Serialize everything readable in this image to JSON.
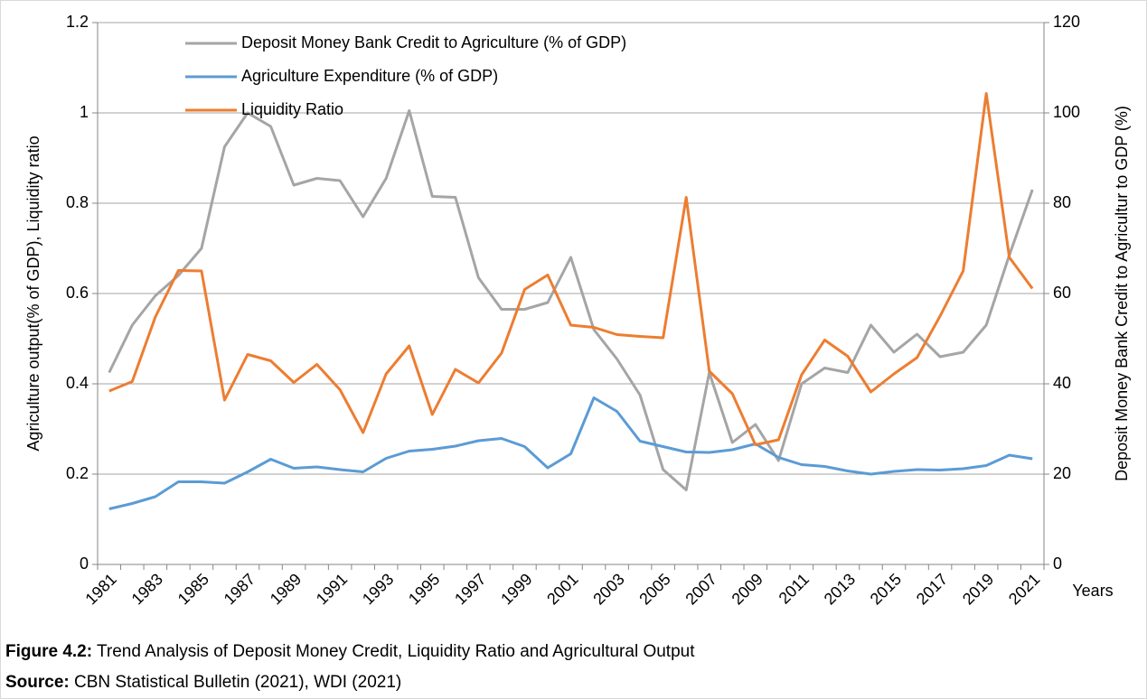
{
  "chart_data": {
    "type": "line",
    "y_label": "Agriculture output(% of GDP), Liquidity ratio",
    "y2_label": "Deposit Money Bank Credit to Agricultur to GDP (%)",
    "x_label": "Years",
    "categories": [
      "1981",
      null,
      "1983",
      null,
      "1985",
      null,
      "1987",
      null,
      "1989",
      null,
      "1991",
      null,
      "1993",
      null,
      "1995",
      null,
      "1997",
      null,
      "1999",
      null,
      "2001",
      null,
      "2003",
      null,
      "2005",
      null,
      "2007",
      null,
      "2009",
      null,
      "2011",
      null,
      "2013",
      null,
      "2015",
      null,
      "2017",
      null,
      "2019",
      null,
      "2021"
    ],
    "series": [
      {
        "name": "Deposit Money Bank Credit to Agriculture (% of GDP)",
        "color": "#a5a5a5",
        "axis": "y2",
        "values": [
          42.5,
          53,
          59.5,
          64,
          70,
          92.5,
          100,
          97,
          84,
          85.5,
          85,
          77,
          85.5,
          100.5,
          81.5,
          81.3,
          63.5,
          56.5,
          56.5,
          58,
          68,
          52,
          45.5,
          37.5,
          21,
          16.5,
          42.5,
          27,
          31,
          23,
          40,
          43.5,
          42.5,
          53,
          47,
          51,
          46,
          47,
          53,
          68.5,
          83
        ]
      },
      {
        "name": "Agriculture Expenditure (% of GDP)",
        "color": "#5b9bd5",
        "values": [
          0.123,
          0.135,
          0.15,
          0.183,
          0.183,
          0.18,
          0.205,
          0.233,
          0.213,
          0.216,
          0.21,
          0.205,
          0.235,
          0.251,
          0.255,
          0.262,
          0.274,
          0.279,
          0.261,
          0.214,
          0.245,
          0.369,
          0.339,
          0.273,
          0.261,
          0.249,
          0.248,
          0.254,
          0.267,
          0.237,
          0.221,
          0.217,
          0.207,
          0.2,
          0.206,
          0.21,
          0.209,
          0.212,
          0.219,
          0.242,
          0.234
        ]
      },
      {
        "name": "Liquidity Ratio",
        "color": "#ed7d31",
        "values": [
          0.384,
          0.405,
          0.548,
          0.651,
          0.65,
          0.364,
          0.465,
          0.451,
          0.403,
          0.443,
          0.387,
          0.292,
          0.422,
          0.484,
          0.332,
          0.432,
          0.402,
          0.468,
          0.609,
          0.641,
          0.53,
          0.525,
          0.509,
          0.505,
          0.502,
          0.813,
          0.428,
          0.378,
          0.265,
          0.276,
          0.42,
          0.497,
          0.461,
          0.382,
          0.422,
          0.458,
          0.55,
          0.65,
          1.043,
          0.68,
          0.611
        ]
      }
    ],
    "ylim": [
      0,
      1.2
    ],
    "yticks": [
      0,
      0.2,
      0.4,
      0.6,
      0.8,
      1,
      1.2
    ],
    "y2lim": [
      0,
      120
    ],
    "y2ticks": [
      0,
      20,
      40,
      60,
      80,
      100,
      120
    ],
    "grid": true,
    "legend": "top-left",
    "caption": {
      "label": "Figure 4.2:",
      "text": "Trend Analysis of Deposit Money Credit,  Liquidity Ratio and Agricultural Output"
    },
    "source": {
      "label": "Source:",
      "text": "CBN Statistical Bulletin (2021), WDI (2021)"
    }
  }
}
